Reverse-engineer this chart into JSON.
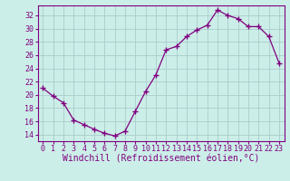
{
  "x": [
    0,
    1,
    2,
    3,
    4,
    5,
    6,
    7,
    8,
    9,
    10,
    11,
    12,
    13,
    14,
    15,
    16,
    17,
    18,
    19,
    20,
    21,
    22,
    23
  ],
  "y": [
    21.0,
    19.8,
    18.8,
    16.2,
    15.5,
    14.8,
    14.2,
    13.8,
    14.5,
    17.5,
    20.5,
    23.0,
    26.8,
    27.3,
    28.8,
    29.8,
    30.5,
    32.8,
    32.0,
    31.5,
    30.3,
    30.3,
    28.8,
    24.8
  ],
  "line_color": "#800080",
  "marker_color": "#800080",
  "bg_color": "#cceee8",
  "grid_color": "#aacccc",
  "xlabel": "Windchill (Refroidissement éolien,°C)",
  "ylabel_ticks": [
    14,
    16,
    18,
    20,
    22,
    24,
    26,
    28,
    30,
    32
  ],
  "xlim": [
    -0.5,
    23.5
  ],
  "ylim": [
    13.0,
    33.5
  ],
  "xtick_labels": [
    "0",
    "1",
    "2",
    "3",
    "4",
    "5",
    "6",
    "7",
    "8",
    "9",
    "10",
    "11",
    "12",
    "13",
    "14",
    "15",
    "16",
    "17",
    "18",
    "19",
    "20",
    "21",
    "22",
    "23"
  ],
  "tick_fontsize": 6.0,
  "xlabel_fontsize": 7.0
}
